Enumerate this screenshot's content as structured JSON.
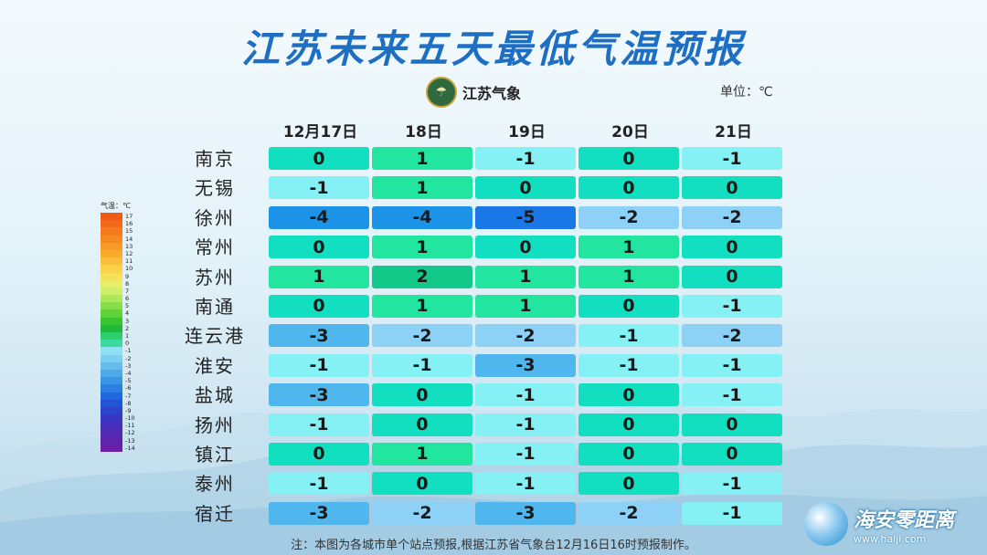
{
  "title": "江苏未来五天最低气温预报",
  "logo": {
    "text": "江苏气象",
    "icon": "meteorology-emblem-icon"
  },
  "unit_label": "单位：℃",
  "dates": [
    "12月17日",
    "18日",
    "19日",
    "20日",
    "21日"
  ],
  "cities": [
    "南京",
    "无锡",
    "徐州",
    "常州",
    "苏州",
    "南通",
    "连云港",
    "淮安",
    "盐城",
    "扬州",
    "镇江",
    "泰州",
    "宿迁"
  ],
  "table": [
    [
      "0",
      "1",
      "-1",
      "0",
      "-1"
    ],
    [
      "-1",
      "1",
      "0",
      "0",
      "0"
    ],
    [
      "-4",
      "-4",
      "-5",
      "-2",
      "-2"
    ],
    [
      "0",
      "1",
      "0",
      "1",
      "0"
    ],
    [
      "1",
      "2",
      "1",
      "1",
      "0"
    ],
    [
      "0",
      "1",
      "1",
      "0",
      "-1"
    ],
    [
      "-3",
      "-2",
      "-2",
      "-1",
      "-2"
    ],
    [
      "-1",
      "-1",
      "-3",
      "-1",
      "-1"
    ],
    [
      "-3",
      "0",
      "-1",
      "0",
      "-1"
    ],
    [
      "-1",
      "0",
      "-1",
      "0",
      "0"
    ],
    [
      "0",
      "1",
      "-1",
      "0",
      "0"
    ],
    [
      "-1",
      "0",
      "-1",
      "0",
      "-1"
    ],
    [
      "-3",
      "-2",
      "-3",
      "-2",
      "-1"
    ]
  ],
  "color_map": {
    "2": "#12c98a",
    "1": "#22e6a0",
    "0": "#12dec0",
    "-1": "#86f1f4",
    "-2": "#8dd2f6",
    "-3": "#4fb6ee",
    "-4": "#1d93e8",
    "-5": "#1a78e6"
  },
  "legend": {
    "title": "气温：℃",
    "labels": [
      "17",
      "16",
      "15",
      "14",
      "13",
      "12",
      "11",
      "10",
      "9",
      "8",
      "7",
      "6",
      "5",
      "4",
      "3",
      "2",
      "1",
      "0",
      "-1",
      "-2",
      "-3",
      "-4",
      "-5",
      "-6",
      "-7",
      "-8",
      "-9",
      "-10",
      "-11",
      "-12",
      "-13",
      "-14"
    ],
    "colors": [
      "#f05a14",
      "#f26a18",
      "#f47a1c",
      "#f68a22",
      "#f89a26",
      "#faab2c",
      "#fbbd3a",
      "#fbd04a",
      "#f6e05a",
      "#e8ee6a",
      "#cdef6a",
      "#abe85a",
      "#86df4a",
      "#5fd33a",
      "#38c52e",
      "#22b83a",
      "#2ecf6e",
      "#3dd9a0",
      "#8ee0f2",
      "#7ccff0",
      "#66bdec",
      "#4ea9e8",
      "#3a94e4",
      "#2a7fe0",
      "#2068dc",
      "#2254d6",
      "#2a44cc",
      "#3636c4",
      "#4430bc",
      "#522ab4",
      "#5e24ac",
      "#6a20a6"
    ]
  },
  "footnote": "注：本图为各城市单个站点预报,根据江苏省气象台12月16日16时预报制作。",
  "watermark": {
    "title": "海安零距离",
    "url": "www.halji.com"
  }
}
